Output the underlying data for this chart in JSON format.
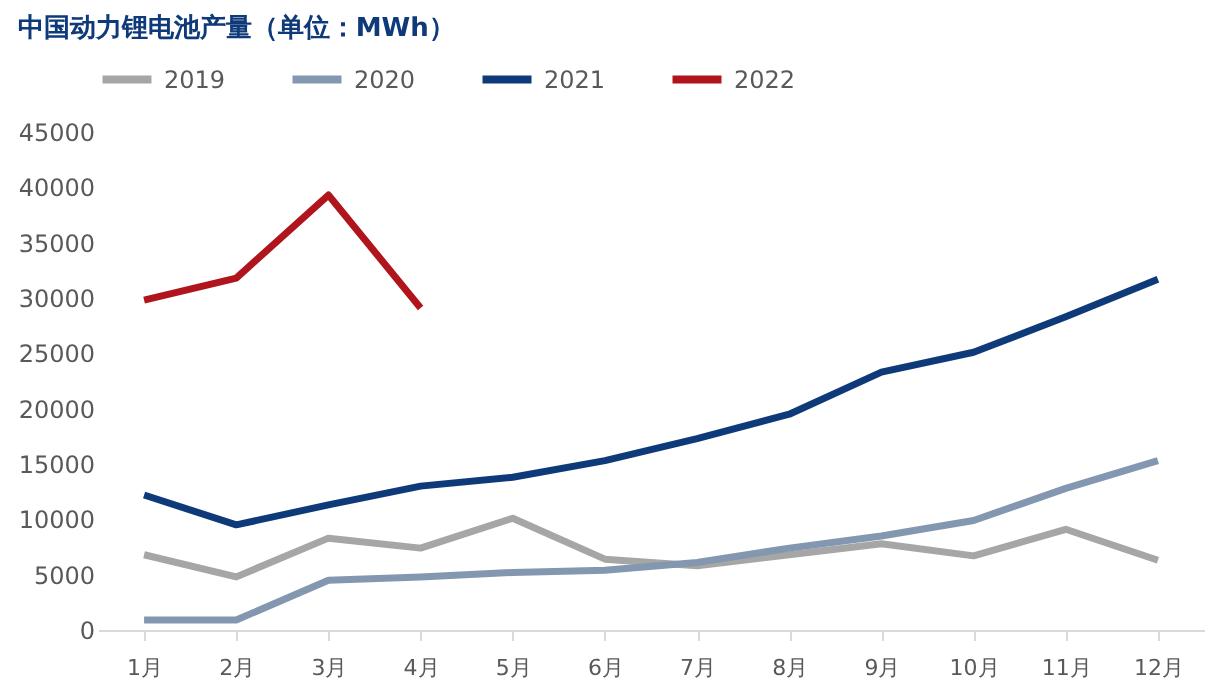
{
  "chart_data": {
    "type": "line",
    "title": "中国动力锂电池产量（单位：MWh）",
    "categories": [
      "1月",
      "2月",
      "3月",
      "4月",
      "5月",
      "6月",
      "7月",
      "8月",
      "9月",
      "10月",
      "11月",
      "12月"
    ],
    "series": [
      {
        "name": "2019",
        "color": "#a6a6a6",
        "values": [
          6800,
          4800,
          8300,
          7400,
          10100,
          6400,
          5800,
          6800,
          7800,
          6700,
          9100,
          6300
        ]
      },
      {
        "name": "2020",
        "color": "#8497b0",
        "values": [
          900,
          900,
          4500,
          4800,
          5200,
          5400,
          6100,
          7400,
          8500,
          9900,
          12800,
          15300
        ]
      },
      {
        "name": "2021",
        "color": "#0f3a7a",
        "values": [
          12200,
          9500,
          11300,
          13000,
          13800,
          15300,
          17300,
          19500,
          23300,
          25100,
          28300,
          31700
        ]
      },
      {
        "name": "2022",
        "color": "#b0141c",
        "values": [
          29800,
          31800,
          39300,
          29100,
          null,
          null,
          null,
          null,
          null,
          null,
          null,
          null
        ]
      }
    ],
    "ylim": [
      0,
      45000
    ],
    "yticks": [
      0,
      5000,
      10000,
      15000,
      20000,
      25000,
      30000,
      35000,
      40000,
      45000
    ],
    "grid": false,
    "legend": "top",
    "line_style": "solid",
    "marker": "none"
  }
}
